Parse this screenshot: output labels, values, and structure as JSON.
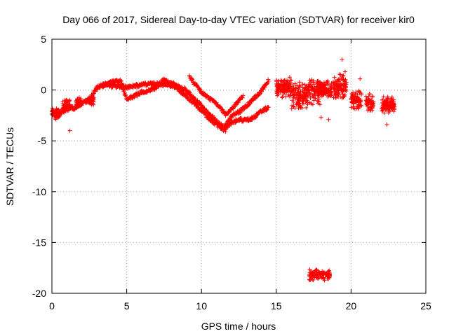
{
  "chart_data": {
    "type": "scatter",
    "title": "Day 066 of 2017, Sidereal Day-to-day VTEC variation (SDTVAR) for receiver kir0",
    "xlabel": "GPS time / hours",
    "ylabel": "SDTVAR / TECUs",
    "xlim": [
      0,
      25
    ],
    "ylim": [
      -20,
      5
    ],
    "xticks": [
      0,
      5,
      10,
      15,
      20,
      25
    ],
    "yticks": [
      -20,
      -15,
      -10,
      -5,
      0,
      5
    ],
    "grid": true,
    "marker": "+",
    "color": "#ff0000",
    "series": [
      {
        "name": "SDTVAR",
        "trace_a": [
          [
            0.0,
            -2.2
          ],
          [
            0.5,
            -2.4
          ],
          [
            1.0,
            -1.6
          ],
          [
            1.5,
            -1.8
          ],
          [
            2.0,
            -1.2
          ],
          [
            2.5,
            -1.0
          ],
          [
            3.0,
            0.2
          ],
          [
            3.5,
            0.6
          ],
          [
            4.0,
            0.4
          ],
          [
            4.5,
            0.4
          ],
          [
            5.0,
            0.3
          ],
          [
            5.5,
            0.4
          ],
          [
            6.0,
            0.5
          ],
          [
            6.5,
            0.7
          ],
          [
            7.0,
            0.6
          ],
          [
            7.5,
            0.5
          ],
          [
            8.0,
            0.5
          ],
          [
            8.5,
            0.0
          ],
          [
            9.0,
            -0.6
          ],
          [
            9.5,
            -1.3
          ],
          [
            10.0,
            -2.0
          ],
          [
            10.5,
            -2.8
          ],
          [
            11.0,
            -3.4
          ],
          [
            11.5,
            -3.9
          ],
          [
            12.0,
            -3.2
          ],
          [
            12.5,
            -2.9
          ],
          [
            13.0,
            -3.0
          ],
          [
            13.5,
            -2.7
          ],
          [
            14.0,
            -2.1
          ],
          [
            14.5,
            -1.7
          ]
        ],
        "trace_b": [
          [
            3.4,
            0.4
          ],
          [
            4.0,
            0.8
          ],
          [
            4.6,
            0.9
          ],
          [
            5.0,
            -0.9
          ],
          [
            5.5,
            -0.6
          ],
          [
            6.0,
            -0.2
          ],
          [
            6.5,
            0.0
          ],
          [
            7.0,
            0.3
          ],
          [
            7.5,
            1.0
          ],
          [
            8.0,
            0.7
          ],
          [
            8.5,
            0.3
          ],
          [
            9.0,
            0.0
          ],
          [
            9.5,
            -0.8
          ],
          [
            10.0,
            -1.6
          ],
          [
            10.5,
            -2.3
          ],
          [
            11.0,
            -3.1
          ],
          [
            11.5,
            -3.7
          ],
          [
            12.0,
            -2.6
          ],
          [
            12.5,
            -2.2
          ],
          [
            13.0,
            -1.6
          ],
          [
            13.5,
            -0.8
          ],
          [
            14.0,
            -0.1
          ],
          [
            14.5,
            1.0
          ]
        ],
        "trace_c": [
          [
            9.2,
            1.3
          ],
          [
            9.6,
            0.5
          ],
          [
            10.0,
            -0.2
          ],
          [
            10.4,
            -0.7
          ],
          [
            10.8,
            -1.1
          ],
          [
            11.2,
            -1.6
          ],
          [
            11.6,
            -2.4
          ],
          [
            12.0,
            -1.9
          ],
          [
            12.4,
            -1.2
          ],
          [
            12.8,
            -0.6
          ]
        ],
        "segments": [
          {
            "x0": 0.0,
            "x1": 0.5,
            "y": -2.3,
            "spread": 0.6
          },
          {
            "x0": 0.7,
            "x1": 1.2,
            "y": -1.6,
            "spread": 0.7
          },
          {
            "x0": 1.6,
            "x1": 2.0,
            "y": -1.2,
            "spread": 0.6
          },
          {
            "x0": 2.4,
            "x1": 2.8,
            "y": -1.0,
            "spread": 0.5
          },
          {
            "x0": 15.0,
            "x1": 16.0,
            "y": 0.3,
            "spread": 1.2
          },
          {
            "x0": 16.0,
            "x1": 17.0,
            "y": -0.6,
            "spread": 1.4
          },
          {
            "x0": 17.0,
            "x1": 18.0,
            "y": -0.2,
            "spread": 1.4
          },
          {
            "x0": 18.0,
            "x1": 18.7,
            "y": 0.0,
            "spread": 1.1
          },
          {
            "x0": 18.8,
            "x1": 19.7,
            "y": 0.4,
            "spread": 1.3
          },
          {
            "x0": 20.0,
            "x1": 20.7,
            "y": -1.0,
            "spread": 1.1
          },
          {
            "x0": 21.0,
            "x1": 21.5,
            "y": -1.2,
            "spread": 1.1
          },
          {
            "x0": 22.0,
            "x1": 22.9,
            "y": -1.5,
            "spread": 0.9
          }
        ],
        "outlier_cluster": {
          "x0": 17.2,
          "x1": 18.6,
          "y": -18.2,
          "spread": 0.6
        },
        "spikes": [
          [
            19.4,
            3.0
          ],
          [
            19.6,
            1.8
          ],
          [
            18.5,
            -2.9
          ],
          [
            18.0,
            -2.7
          ],
          [
            20.6,
            1.1
          ],
          [
            22.4,
            -3.4
          ],
          [
            1.2,
            -4.0
          ],
          [
            11.6,
            -4.1
          ]
        ]
      }
    ]
  }
}
